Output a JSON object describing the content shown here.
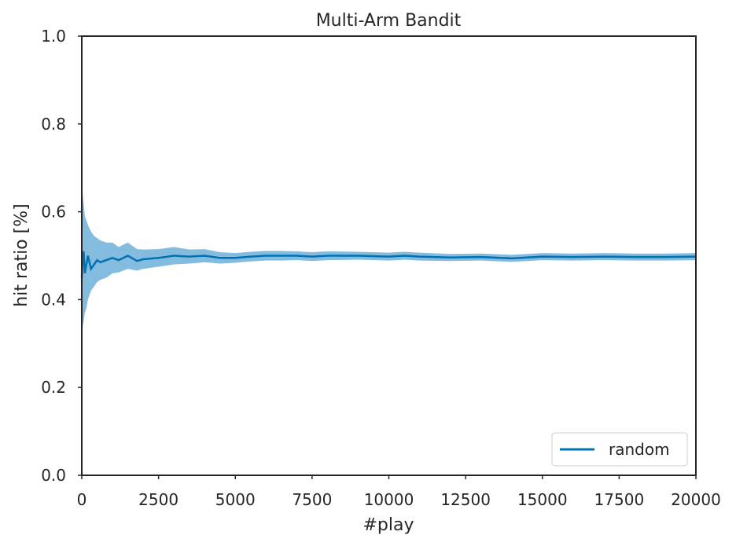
{
  "chart_data": {
    "type": "line",
    "title": "Multi-Arm Bandit",
    "xlabel": "#play",
    "ylabel": "hit ratio [%]",
    "xlim": [
      0,
      20000
    ],
    "ylim": [
      0.0,
      1.0
    ],
    "xticks": [
      0,
      2500,
      5000,
      7500,
      10000,
      12500,
      15000,
      17500,
      20000
    ],
    "xtick_labels": [
      "0",
      "2500",
      "5000",
      "7500",
      "10000",
      "12500",
      "15000",
      "17500",
      "20000"
    ],
    "yticks": [
      0.0,
      0.2,
      0.4,
      0.6,
      0.8,
      1.0
    ],
    "ytick_labels": [
      "0.0",
      "0.2",
      "0.4",
      "0.6",
      "0.8",
      "1.0"
    ],
    "grid": false,
    "legend_position": "bottom-right",
    "series": [
      {
        "name": "random",
        "color": "#0072b2",
        "band_color": "#5aa5d4",
        "x": [
          0,
          30,
          60,
          100,
          150,
          200,
          300,
          400,
          500,
          600,
          800,
          1000,
          1200,
          1500,
          1800,
          2000,
          2500,
          3000,
          3500,
          4000,
          4500,
          5000,
          5500,
          6000,
          6500,
          7000,
          7500,
          8000,
          9000,
          10000,
          10500,
          11000,
          12000,
          13000,
          14000,
          15000,
          16000,
          17000,
          18000,
          19000,
          20000
        ],
        "y": [
          0.45,
          0.5,
          0.51,
          0.46,
          0.48,
          0.5,
          0.47,
          0.48,
          0.49,
          0.485,
          0.49,
          0.495,
          0.49,
          0.5,
          0.488,
          0.492,
          0.495,
          0.5,
          0.498,
          0.5,
          0.495,
          0.495,
          0.498,
          0.5,
          0.5,
          0.5,
          0.498,
          0.5,
          0.5,
          0.498,
          0.5,
          0.498,
          0.496,
          0.497,
          0.494,
          0.498,
          0.497,
          0.498,
          0.497,
          0.497,
          0.498
        ],
        "lower": [
          0.22,
          0.34,
          0.35,
          0.37,
          0.38,
          0.4,
          0.42,
          0.43,
          0.44,
          0.445,
          0.45,
          0.46,
          0.462,
          0.47,
          0.466,
          0.47,
          0.475,
          0.48,
          0.482,
          0.485,
          0.482,
          0.484,
          0.487,
          0.489,
          0.489,
          0.49,
          0.488,
          0.49,
          0.491,
          0.489,
          0.491,
          0.489,
          0.488,
          0.489,
          0.486,
          0.49,
          0.489,
          0.49,
          0.489,
          0.489,
          0.49
        ],
        "upper": [
          0.7,
          0.64,
          0.62,
          0.59,
          0.58,
          0.57,
          0.555,
          0.545,
          0.54,
          0.535,
          0.53,
          0.53,
          0.52,
          0.53,
          0.515,
          0.514,
          0.515,
          0.52,
          0.514,
          0.515,
          0.508,
          0.506,
          0.509,
          0.511,
          0.511,
          0.51,
          0.508,
          0.51,
          0.509,
          0.507,
          0.509,
          0.507,
          0.504,
          0.505,
          0.502,
          0.506,
          0.505,
          0.506,
          0.505,
          0.505,
          0.506
        ]
      }
    ]
  }
}
